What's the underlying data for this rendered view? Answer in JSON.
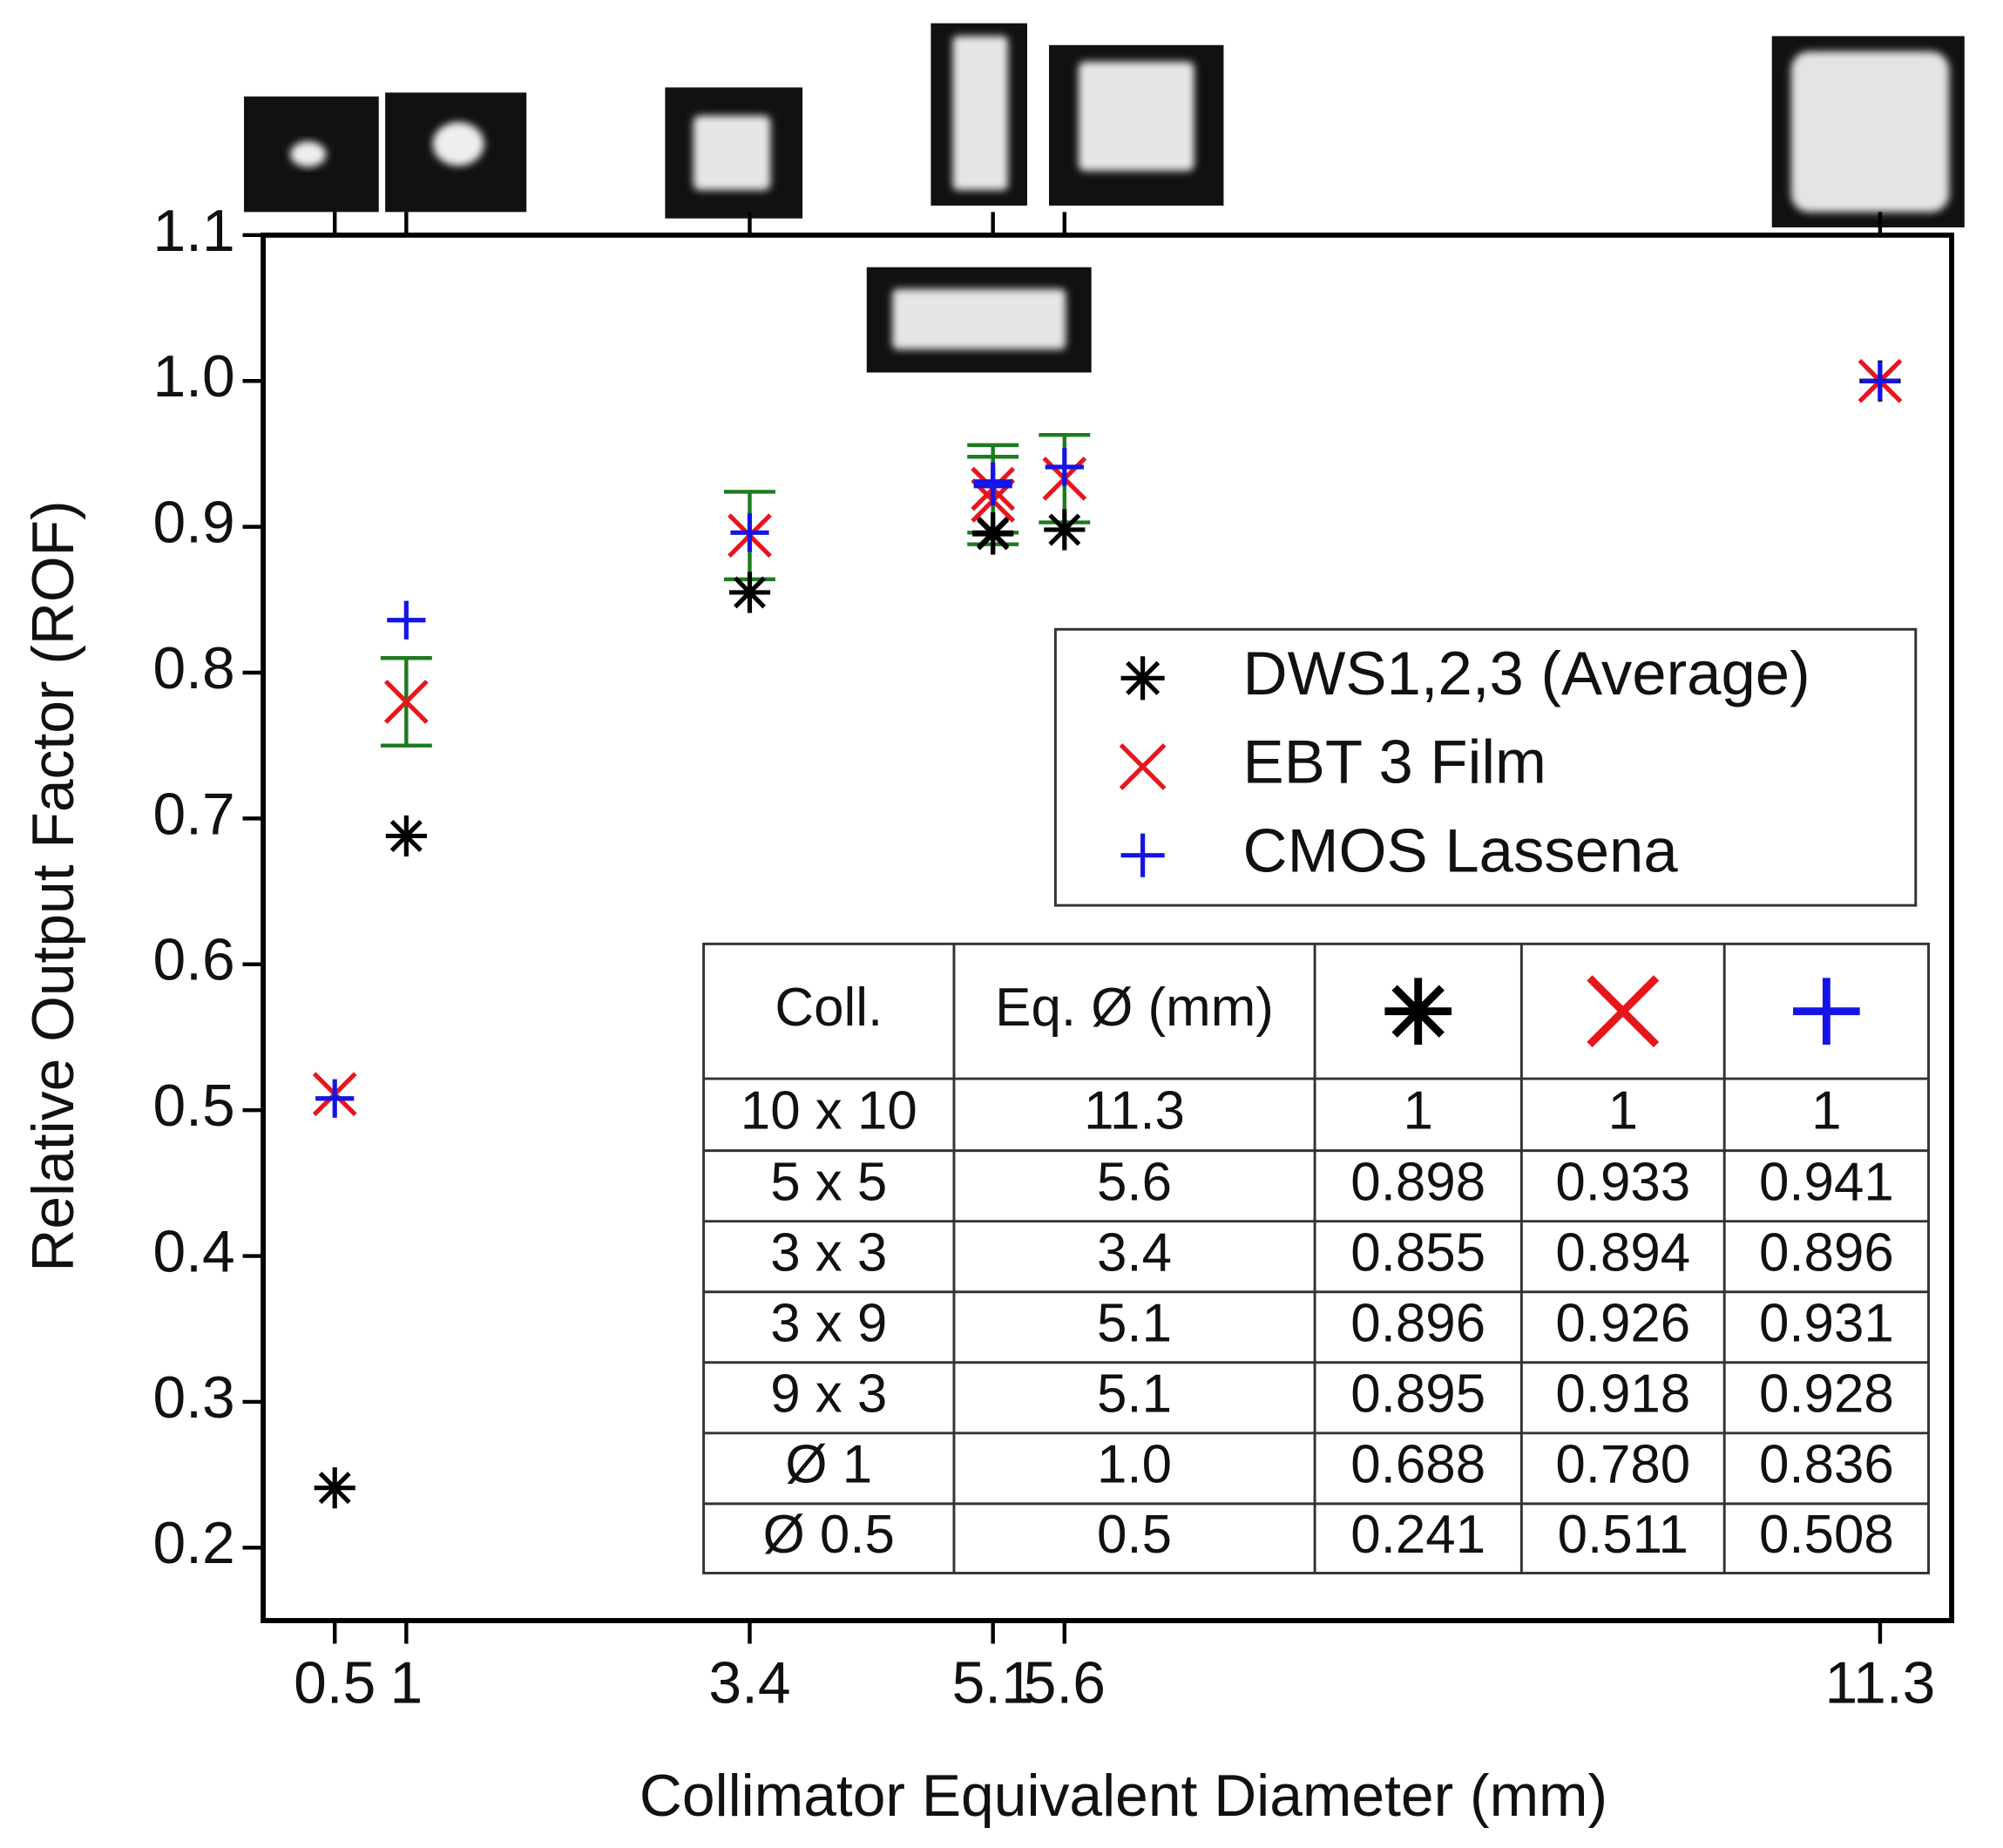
{
  "chart_data": {
    "type": "scatter",
    "x_label": "Collimator Equivalent Diameter (mm)",
    "y_label": "Relative Output Factor (ROF)",
    "x": [
      11.3,
      5.6,
      3.4,
      5.1,
      5.1,
      1.0,
      0.5
    ],
    "series": [
      {
        "name": "DWS1,2,3 (Average)",
        "color": "#000000",
        "marker": "asterisk",
        "values": [
          1,
          0.898,
          0.855,
          0.896,
          0.895,
          0.688,
          0.241
        ]
      },
      {
        "name": "EBT 3 Film",
        "color": "#e8161b",
        "marker": "x",
        "values": [
          1,
          0.933,
          0.894,
          0.926,
          0.918,
          0.78,
          0.511
        ],
        "errors": [
          null,
          0.03,
          0.03,
          0.03,
          0.03,
          0.03,
          null
        ],
        "error_color": "#1e7b1e"
      },
      {
        "name": "CMOS Lassena",
        "color": "#1414e6",
        "marker": "plus",
        "values": [
          1,
          0.941,
          0.896,
          0.931,
          0.928,
          0.836,
          0.508
        ]
      }
    ],
    "xlim": [
      0,
      11.8
    ],
    "xticks": [
      0.5,
      1,
      3.4,
      5.1,
      5.6,
      11.3
    ],
    "ylim": [
      0.15,
      1.1
    ],
    "yticks": [
      0.2,
      0.3,
      0.4,
      0.5,
      0.6,
      0.7,
      0.8,
      0.9,
      {
        "value": 1,
        "label": "1.0"
      },
      1.1
    ]
  },
  "table": {
    "columns": [
      "Coll.",
      "Eq. Ø (mm)"
    ],
    "rows": [
      [
        "10 x 10",
        "11.3",
        "1",
        "1",
        "1"
      ],
      [
        "5 x 5",
        "5.6",
        "0.898",
        "0.933",
        "0.941"
      ],
      [
        "3 x 3",
        "3.4",
        "0.855",
        "0.894",
        "0.896"
      ],
      [
        "3 x 9",
        "5.1",
        "0.896",
        "0.926",
        "0.931"
      ],
      [
        "9 x 3",
        "5.1",
        "0.895",
        "0.918",
        "0.928"
      ],
      [
        "Ø 1",
        "1.0",
        "0.688",
        "0.780",
        "0.836"
      ],
      [
        "Ø 0.5",
        "0.5",
        "0.241",
        "0.511",
        "0.508"
      ]
    ]
  }
}
